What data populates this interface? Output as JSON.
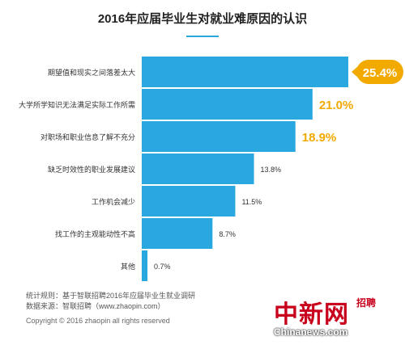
{
  "chart_data": {
    "type": "bar",
    "orientation": "horizontal",
    "title": "2016年应届毕业生对就业难原因的认识",
    "categories": [
      "期望值和现实之间落差太大",
      "大学所学知识无法满足实际工作所需",
      "对职场和职业信息了解不充分",
      "缺乏时效性的职业发展建议",
      "工作机会减少",
      "找工作的主观能动性不高",
      "其他"
    ],
    "values": [
      25.4,
      21.0,
      18.9,
      13.8,
      11.5,
      8.7,
      0.7
    ],
    "value_labels": [
      "25.4%",
      "21.0%",
      "18.9%",
      "13.8%",
      "11.5%",
      "8.7%",
      "0.7%"
    ],
    "xlim": [
      0,
      25.4
    ],
    "grid": false,
    "colors": {
      "bar": "#29a7df",
      "highlight_text": "#f2a900",
      "callout_fill": "#f2a900",
      "callout_text": "#ffffff",
      "normal_text": "#333333"
    }
  },
  "footer": {
    "note_line1": "统计规则：基于智联招聘2016年应届毕业生就业调研",
    "note_line2": "数据来源：智联招聘（www.zhaopin.com）",
    "copyright": "Copyright © 2016 zhaopin all rights reserved"
  },
  "watermark": {
    "logo_text": "中新网",
    "sub_text": "招聘",
    "site": "Chinanews.com"
  }
}
